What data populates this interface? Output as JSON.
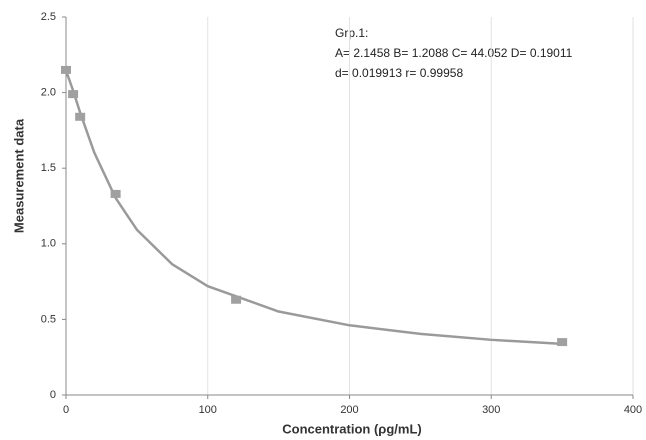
{
  "chart_data": {
    "type": "scatter",
    "x_label": "Concentration  (ρg/mL)",
    "y_label": "Measurement data",
    "annotations": [
      "Grp.1:",
      "A= 2.1458  B= 1.2088  C= 44.052  D= 0.19011",
      "d= 0.019913  r= 0.99958"
    ],
    "xlim": [
      0,
      400
    ],
    "xticks": [
      0,
      100,
      200,
      300,
      400
    ],
    "ylim": [
      0,
      2.5
    ],
    "yticks": [
      0,
      0.5,
      {
        "value": 1,
        "label": "1.0"
      },
      1.5,
      {
        "value": 2,
        "label": "2.0"
      },
      2.5
    ],
    "grid": true,
    "series": [
      {
        "type": "line",
        "color": "#9a9a9a",
        "x": [
          0,
          5,
          10,
          20,
          35,
          50,
          75,
          100,
          150,
          200,
          250,
          300,
          350
        ],
        "values": [
          2.146,
          2.014,
          1.867,
          1.602,
          1.303,
          1.093,
          0.864,
          0.72,
          0.552,
          0.461,
          0.404,
          0.365,
          0.338
        ]
      },
      {
        "type": "scatter",
        "color": "#a0a0a0",
        "x": [
          0,
          5,
          10,
          35,
          120,
          350
        ],
        "values": [
          2.15,
          1.99,
          1.84,
          1.33,
          0.63,
          0.35
        ]
      }
    ]
  }
}
